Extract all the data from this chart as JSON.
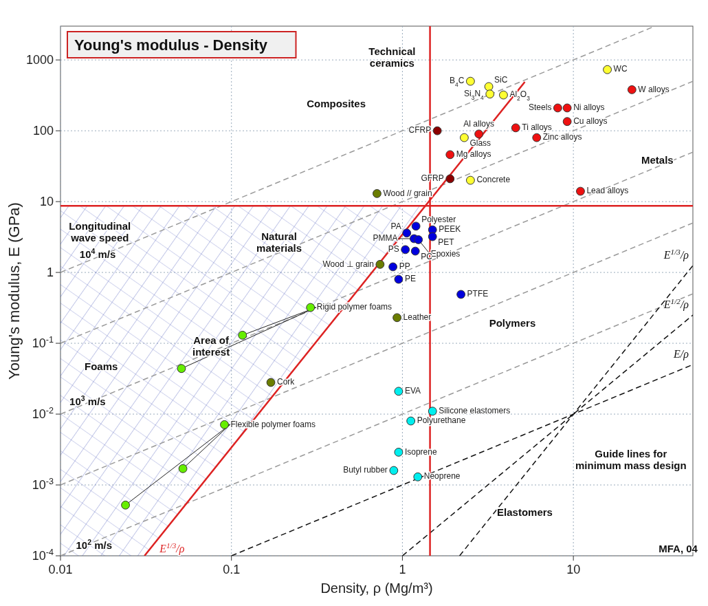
{
  "chart_data": {
    "type": "scatter",
    "title": "Young's modulus - Density",
    "xlabel": "Density, ρ  (Mg/m³)",
    "ylabel": "Young's modulus, E (GPa)",
    "log": "xy",
    "grid": true,
    "marker": "circle",
    "xlim": [
      0.01,
      50
    ],
    "xticks": [
      0.01,
      0.1,
      1,
      10
    ],
    "ylim": [
      0.0001,
      3000
    ],
    "yticks": [
      {
        "value": 0.0001,
        "label": "10$^{-4}$"
      },
      {
        "value": 0.001,
        "label": "10$^{-3}$"
      },
      {
        "value": 0.01,
        "label": "10$^{-2}$"
      },
      {
        "value": 0.1,
        "label": "10$^{-1}$"
      },
      1,
      10,
      100,
      1000
    ],
    "ref_lines": [
      {
        "axis": "x",
        "value": 1.45,
        "color": "#dd2222"
      },
      {
        "axis": "y",
        "value": 8.7,
        "color": "#dd2222"
      }
    ],
    "annotations": [
      "Technical ceramics",
      "Composites",
      "Natural materials",
      "Metals",
      "Polymers",
      "Elastomers",
      "Foams",
      "Longitudinal wave speed",
      {
        "text": "10$^{4}$ m/s",
        "x": 0.0165,
        "y": 1.8
      },
      {
        "text": "10$^{3}$ m/s",
        "x": 0.0144,
        "y": 0.015
      },
      {
        "text": "10$^{2}$ m/s",
        "x": 0.0157,
        "y": 0.00014
      },
      "Area of interest",
      "Guide lines for minimum mass design",
      "MFA, 04"
    ],
    "series": [
      {
        "type": "line",
        "marker": "none",
        "color": "#999999",
        "line_style": "dashed",
        "x": [
          0.01,
          50
        ],
        "values": [
          0.0001,
          0.5
        ]
      },
      {
        "type": "line",
        "marker": "none",
        "color": "#999999",
        "line_style": "dashed",
        "x": [
          0.01,
          50
        ],
        "values": [
          0.001,
          5
        ]
      },
      {
        "type": "line",
        "marker": "none",
        "color": "#999999",
        "line_style": "dashed",
        "x": [
          0.01,
          50
        ],
        "values": [
          0.01,
          50
        ]
      },
      {
        "type": "line",
        "marker": "none",
        "color": "#999999",
        "line_style": "dashed",
        "x": [
          0.01,
          50
        ],
        "values": [
          0.1,
          500
        ]
      },
      {
        "type": "line",
        "marker": "none",
        "color": "#999999",
        "line_style": "dashed",
        "x": [
          0.01,
          30
        ],
        "values": [
          1,
          3000
        ]
      },
      {
        "type": "line",
        "marker": "none",
        "name": "E/ρ",
        "color": "#111111",
        "line_style": "dashed",
        "x": [
          0.1,
          50
        ],
        "values": [
          0.0001,
          0.05
        ]
      },
      {
        "type": "line",
        "marker": "none",
        "name": "E$^{1/2}$/ρ",
        "color": "#111111",
        "line_style": "dashed",
        "x": [
          1,
          50
        ],
        "values": [
          0.0001,
          0.25
        ]
      },
      {
        "type": "line",
        "marker": "none",
        "name": "E$^{1/3}$/ρ",
        "color": "#111111",
        "line_style": "dashed",
        "x": [
          2.16,
          50
        ],
        "values": [
          0.0001,
          1.25
        ]
      },
      {
        "type": "line",
        "marker": "none",
        "name": "E$^{1/3}$/ρ",
        "color": "#dd2222",
        "line_style": "solid",
        "x": [
          5.2,
          0.031
        ],
        "values": [
          490,
          0.0001
        ]
      },
      {
        "name": "B$_{4}$C",
        "color": "#ffff33",
        "x": [
          2.5
        ],
        "values": [
          500
        ]
      },
      {
        "name": "SiC",
        "color": "#ffff33",
        "x": [
          3.2
        ],
        "values": [
          420
        ]
      },
      {
        "name": "Si$_{3}$N$_{4}$",
        "color": "#ffff33",
        "x": [
          3.25
        ],
        "values": [
          330
        ]
      },
      {
        "name": "Al$_{2}$O$_{3}$",
        "color": "#ffff33",
        "x": [
          3.9
        ],
        "values": [
          320
        ]
      },
      {
        "name": "WC",
        "color": "#ffff33",
        "x": [
          15.8
        ],
        "values": [
          730
        ]
      },
      {
        "name": "Glass",
        "color": "#ffff33",
        "x": [
          2.3
        ],
        "values": [
          80
        ]
      },
      {
        "name": "Concrete",
        "color": "#ffff33",
        "x": [
          2.5
        ],
        "values": [
          20
        ]
      },
      {
        "name": "Ti alloys",
        "color": "#ee1111",
        "x": [
          4.6
        ],
        "values": [
          110
        ]
      },
      {
        "name": "Steels",
        "color": "#ee1111",
        "x": [
          8.1
        ],
        "values": [
          210
        ]
      },
      {
        "name": "Ni alloys",
        "color": "#ee1111",
        "x": [
          9.2
        ],
        "values": [
          210
        ]
      },
      {
        "name": "Cu alloys",
        "color": "#ee1111",
        "x": [
          9.2
        ],
        "values": [
          135
        ]
      },
      {
        "name": "Zinc alloys",
        "color": "#ee1111",
        "x": [
          6.1
        ],
        "values": [
          80
        ]
      },
      {
        "name": "Al alloys",
        "color": "#ee1111",
        "x": [
          2.8
        ],
        "values": [
          90
        ]
      },
      {
        "name": "Mg alloys",
        "color": "#ee1111",
        "x": [
          1.9
        ],
        "values": [
          46
        ]
      },
      {
        "name": "W alloys",
        "color": "#ee1111",
        "x": [
          22
        ],
        "values": [
          380
        ]
      },
      {
        "name": "Lead alloys",
        "color": "#ee1111",
        "x": [
          11
        ],
        "values": [
          14
        ]
      },
      {
        "name": "CFRP",
        "color": "#8b0000",
        "x": [
          1.6
        ],
        "values": [
          100
        ]
      },
      {
        "name": "GFRP",
        "color": "#8b0000",
        "x": [
          1.9
        ],
        "values": [
          21
        ]
      },
      {
        "name": "Wood // grain",
        "color": "#6b7d00",
        "x": [
          0.71
        ],
        "values": [
          13
        ]
      },
      {
        "name": "Wood ⊥ grain",
        "color": "#6b7d00",
        "x": [
          0.74
        ],
        "values": [
          1.3
        ]
      },
      {
        "name": "Leather",
        "color": "#6b7d00",
        "x": [
          0.93
        ],
        "values": [
          0.23
        ]
      },
      {
        "name": "Cork",
        "color": "#6b7d00",
        "x": [
          0.17
        ],
        "values": [
          0.028
        ]
      },
      {
        "name": "PMMA",
        "color": "#0000dd",
        "x": [
          1.17
        ],
        "values": [
          3
        ]
      },
      {
        "name": "PA",
        "color": "#0000dd",
        "x": [
          1.06
        ],
        "values": [
          3.6
        ]
      },
      {
        "name": "Polyester",
        "color": "#0000dd",
        "x": [
          1.2
        ],
        "values": [
          4.5
        ]
      },
      {
        "name": "PEEK",
        "color": "#0000dd",
        "x": [
          1.5
        ],
        "values": [
          4
        ]
      },
      {
        "name": "PET",
        "color": "#0000dd",
        "x": [
          1.5
        ],
        "values": [
          3.2
        ]
      },
      {
        "name": "Epoxies",
        "color": "#0000dd",
        "x": [
          1.24
        ],
        "values": [
          2.9
        ]
      },
      {
        "name": "PC",
        "color": "#0000dd",
        "x": [
          1.19
        ],
        "values": [
          2
        ]
      },
      {
        "name": "PS",
        "color": "#0000dd",
        "x": [
          1.04
        ],
        "values": [
          2.1
        ]
      },
      {
        "name": "PP",
        "color": "#0000dd",
        "x": [
          0.88
        ],
        "values": [
          1.2
        ]
      },
      {
        "name": "PE",
        "color": "#0000dd",
        "x": [
          0.95
        ],
        "values": [
          0.8
        ]
      },
      {
        "name": "PTFE",
        "color": "#0000dd",
        "x": [
          2.2
        ],
        "values": [
          0.49
        ]
      },
      {
        "name": "EVA",
        "color": "#00eeee",
        "x": [
          0.95
        ],
        "values": [
          0.021
        ]
      },
      {
        "name": "Polyurethane",
        "color": "#00eeee",
        "x": [
          1.12
        ],
        "values": [
          0.008
        ]
      },
      {
        "name": "Silicone elastomers",
        "color": "#00eeee",
        "x": [
          1.5
        ],
        "values": [
          0.011
        ]
      },
      {
        "name": "Isoprene",
        "color": "#00eeee",
        "x": [
          0.95
        ],
        "values": [
          0.0029
        ]
      },
      {
        "name": "Butyl rubber",
        "color": "#00eeee",
        "x": [
          0.89
        ],
        "values": [
          0.0016
        ]
      },
      {
        "name": "Neoprene",
        "color": "#00eeee",
        "x": [
          1.23
        ],
        "values": [
          0.0013
        ]
      },
      {
        "name": "Rigid polymer foams",
        "color": "#66ee00",
        "x": [
          0.29,
          0.116,
          0.051
        ],
        "values": [
          0.32,
          0.13,
          0.044
        ]
      },
      {
        "name": "Flexible polymer foams",
        "color": "#66ee00",
        "x": [
          0.091,
          0.052,
          0.024
        ],
        "values": [
          0.0071,
          0.0017,
          0.00052
        ]
      }
    ]
  }
}
